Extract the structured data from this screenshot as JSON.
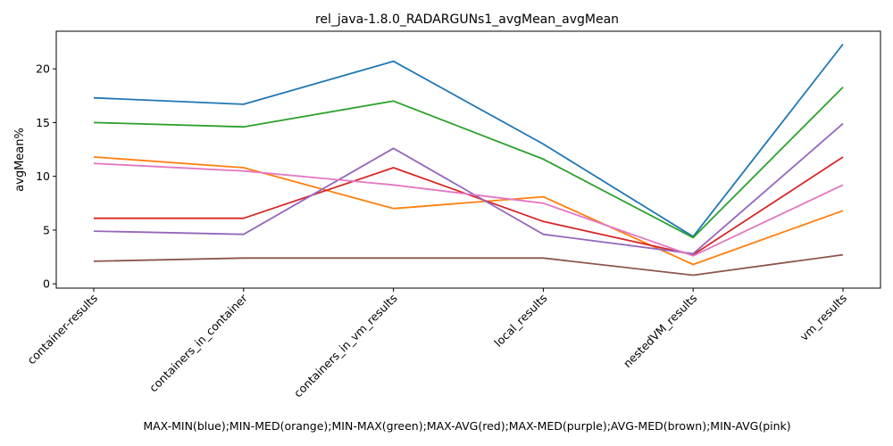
{
  "chart_data": {
    "type": "line",
    "title": "rel_java-1.8.0_RADARGUNs1_avgMean_avgMean",
    "xlabel": "MAX-MIN(blue);MIN-MED(orange);MIN-MAX(green);MAX-AVG(red);MAX-MED(purple);AVG-MED(brown);MIN-AVG(pink)",
    "ylabel": "avgMean%",
    "categories": [
      "container-results",
      "containers_in_container",
      "containers_in_vm_results",
      "local_results",
      "nestedVM_results",
      "vm_results"
    ],
    "ylim": [
      -0.4,
      23.5
    ],
    "yticks": [
      0,
      5,
      10,
      15,
      20
    ],
    "grid": false,
    "series": [
      {
        "color": "#1f77b4",
        "values": [
          17.3,
          16.7,
          20.7,
          13.0,
          4.4,
          22.3
        ]
      },
      {
        "color": "#ff7f0e",
        "values": [
          11.8,
          10.8,
          7.0,
          8.1,
          1.8,
          6.8
        ]
      },
      {
        "color": "#2ca02c",
        "values": [
          15.0,
          14.6,
          17.0,
          11.6,
          4.3,
          18.3
        ]
      },
      {
        "color": "#d62728",
        "values": [
          6.1,
          6.1,
          10.8,
          5.8,
          2.7,
          11.8
        ]
      },
      {
        "color": "#9467bd",
        "values": [
          4.9,
          4.6,
          12.6,
          4.6,
          2.8,
          14.9
        ]
      },
      {
        "color": "#8c564b",
        "values": [
          2.1,
          2.4,
          2.4,
          2.4,
          0.8,
          2.7
        ]
      },
      {
        "color": "#e377c2",
        "values": [
          11.2,
          10.5,
          9.2,
          7.5,
          2.6,
          9.2
        ]
      }
    ]
  }
}
